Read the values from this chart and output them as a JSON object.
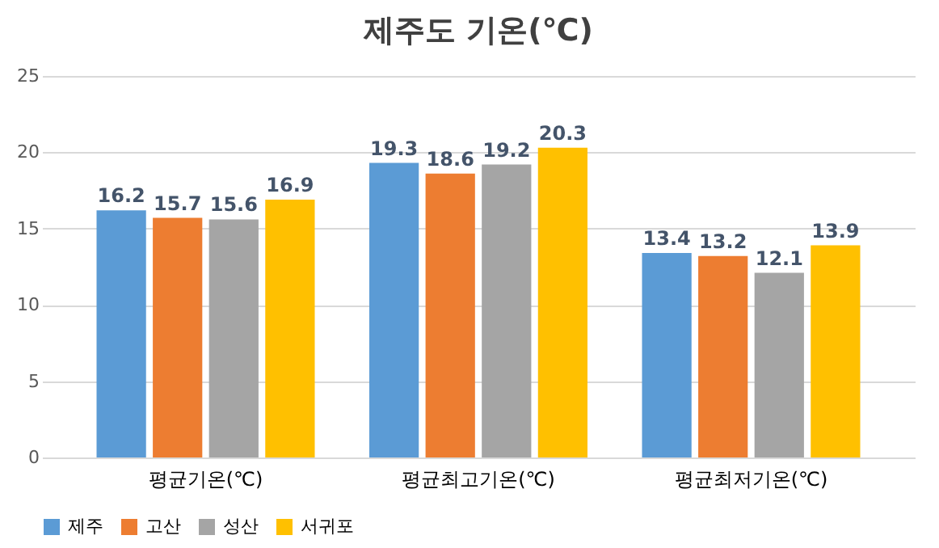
{
  "chart_data": {
    "type": "bar",
    "title": "제주도 기온(℃)",
    "categories": [
      "평균기온(℃)",
      "평균최고기온(℃)",
      "평균최저기온(℃)"
    ],
    "series": [
      {
        "name": "제주",
        "color": "#5b9bd5",
        "values": [
          16.2,
          19.3,
          13.4
        ]
      },
      {
        "name": "고산",
        "color": "#ed7d31",
        "values": [
          15.7,
          18.6,
          13.2
        ]
      },
      {
        "name": "성산",
        "color": "#a5a5a5",
        "values": [
          15.6,
          19.2,
          12.1
        ]
      },
      {
        "name": "서귀포",
        "color": "#ffc000",
        "values": [
          16.9,
          20.3,
          13.9
        ]
      }
    ],
    "ylim": [
      0,
      25
    ],
    "yticks": [
      0,
      5,
      10,
      15,
      20,
      25
    ],
    "grid": "y",
    "legend": "bottom",
    "data_labels": true
  }
}
